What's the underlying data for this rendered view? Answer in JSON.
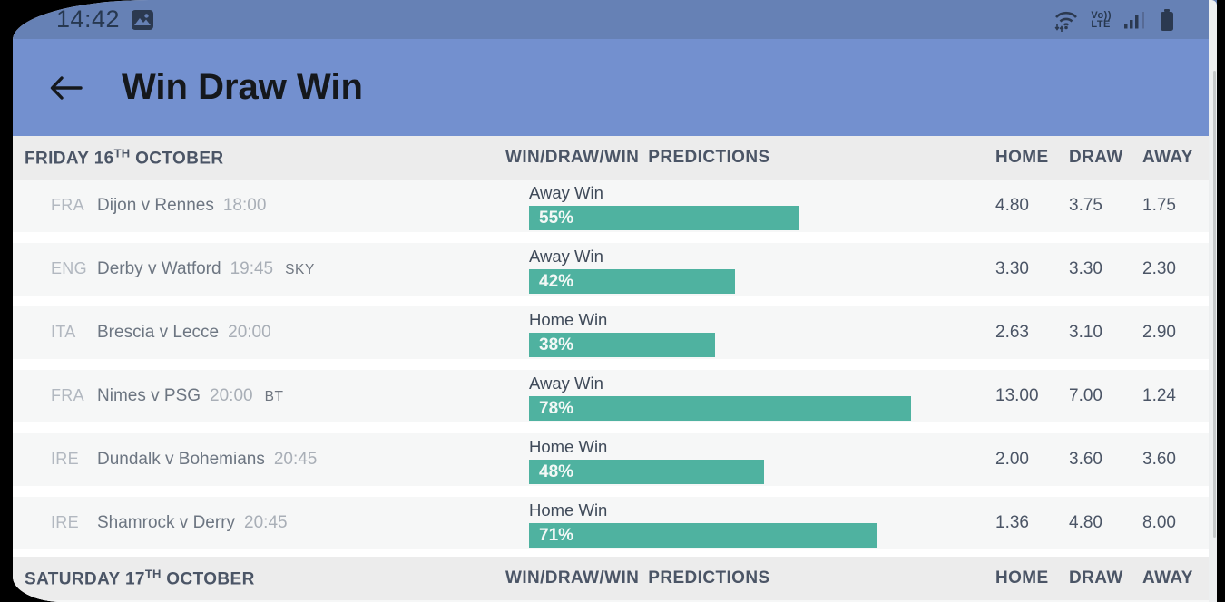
{
  "status_bar": {
    "time": "14:42",
    "volte_top": "Vo))",
    "volte_bottom": "LTE"
  },
  "header": {
    "title": "Win Draw Win"
  },
  "columns": {
    "predictions_a": "WIN/DRAW/WIN",
    "predictions_b": "PREDICTIONS",
    "home": "HOME",
    "draw": "DRAW",
    "away": "AWAY"
  },
  "sections": [
    {
      "date_prefix": "FRIDAY 16",
      "date_sup": "TH",
      "date_suffix": " OCTOBER"
    },
    {
      "date_prefix": "SATURDAY 17",
      "date_sup": "TH",
      "date_suffix": " OCTOBER"
    }
  ],
  "matches": [
    {
      "league": "FRA",
      "teams": "Dijon v Rennes",
      "time": "18:00",
      "tv": "",
      "prediction": "Away Win",
      "pct": 55,
      "pct_label": "55%",
      "home": "4.80",
      "draw": "3.75",
      "away": "1.75"
    },
    {
      "league": "ENG",
      "teams": "Derby v Watford",
      "time": "19:45",
      "tv": "SKY",
      "prediction": "Away Win",
      "pct": 42,
      "pct_label": "42%",
      "home": "3.30",
      "draw": "3.30",
      "away": "2.30"
    },
    {
      "league": "ITA",
      "teams": "Brescia v Lecce",
      "time": "20:00",
      "tv": "",
      "prediction": "Home Win",
      "pct": 38,
      "pct_label": "38%",
      "home": "2.63",
      "draw": "3.10",
      "away": "2.90"
    },
    {
      "league": "FRA",
      "teams": "Nimes v PSG",
      "time": "20:00",
      "tv": "BT",
      "prediction": "Away Win",
      "pct": 78,
      "pct_label": "78%",
      "home": "13.00",
      "draw": "7.00",
      "away": "1.24"
    },
    {
      "league": "IRE",
      "teams": "Dundalk v Bohemians",
      "time": "20:45",
      "tv": "",
      "prediction": "Home Win",
      "pct": 48,
      "pct_label": "48%",
      "home": "2.00",
      "draw": "3.60",
      "away": "3.60"
    },
    {
      "league": "IRE",
      "teams": "Shamrock v Derry",
      "time": "20:45",
      "tv": "",
      "prediction": "Home Win",
      "pct": 71,
      "pct_label": "71%",
      "home": "1.36",
      "draw": "4.80",
      "away": "8.00"
    }
  ],
  "colors": {
    "status_bar_bg": "#6681b5",
    "app_header_bg": "#7390cf",
    "bar_accent": "#4fb2a0",
    "section_header_bg": "#ececec",
    "row_bg": "#f6f7f7"
  }
}
